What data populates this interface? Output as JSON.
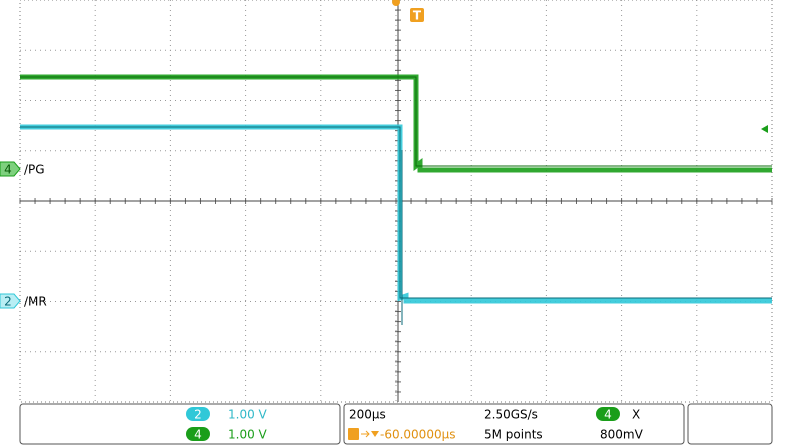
{
  "channels": [
    {
      "number": "2",
      "label": "/MR",
      "scale": "1.00 V"
    },
    {
      "number": "4",
      "label": "/PG",
      "scale": "1.00 V"
    }
  ],
  "trigger": {
    "marker": "T",
    "position": "-60.00000µs",
    "source": "4",
    "slope": "X",
    "level": "800mV"
  },
  "timebase": {
    "scale": "200µs",
    "sample_rate": "2.50GS/s",
    "record_length": "5M points"
  }
}
